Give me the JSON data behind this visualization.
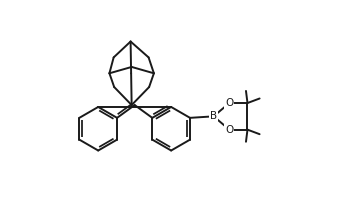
{
  "background_color": "#ffffff",
  "line_color": "#1a1a1a",
  "line_width": 1.4,
  "figure_width": 3.48,
  "figure_height": 1.98,
  "dpi": 100,
  "label_B": "B",
  "label_O1": "O",
  "label_O2": "O",
  "font_size_atom": 7.5,
  "xlim": [
    -0.2,
    8.5
  ],
  "ylim": [
    -0.5,
    6.0
  ]
}
